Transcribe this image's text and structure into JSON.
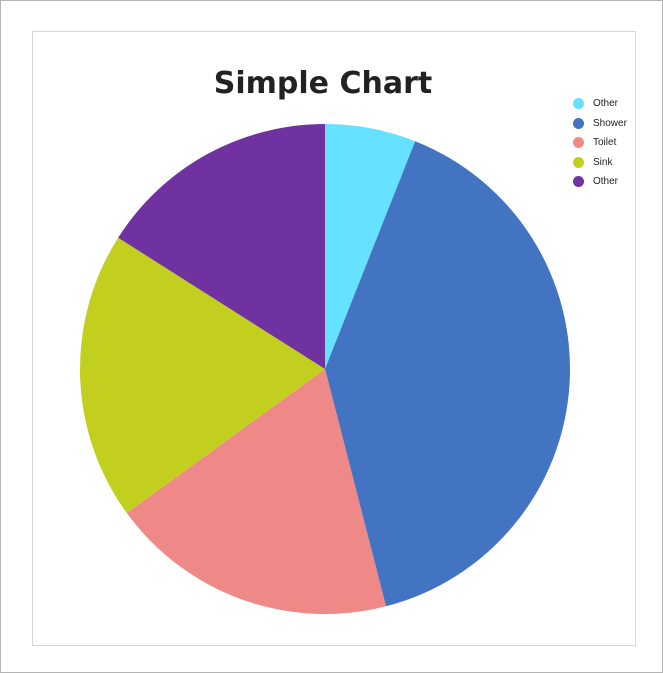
{
  "chart_data": {
    "type": "pie",
    "title": "Simple Chart",
    "categories": [
      "Other",
      "Shower",
      "Toilet",
      "Sink",
      "Other"
    ],
    "values": [
      6,
      40,
      19,
      19,
      16
    ],
    "colors": [
      "#66e1ff",
      "#4374c1",
      "#ee8987",
      "#c2cf1e",
      "#6f32a0"
    ],
    "start_angle_deg": 0,
    "direction": "clockwise",
    "legend": "top-right"
  }
}
